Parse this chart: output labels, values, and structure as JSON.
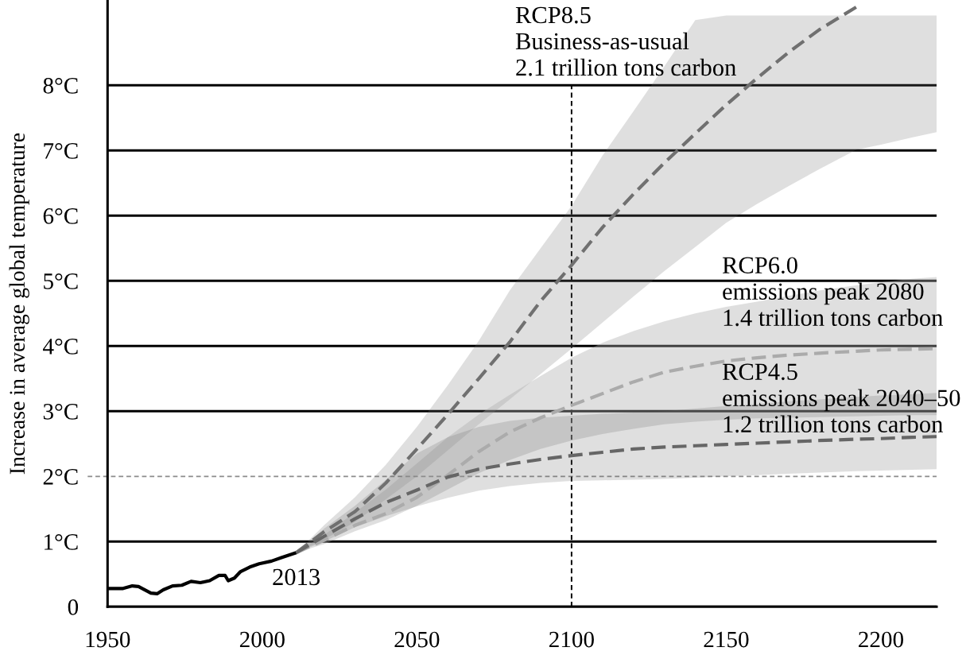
{
  "chart_data": {
    "type": "line",
    "ylabel": "Increase in average global temperature",
    "xlim": [
      1950,
      2218
    ],
    "ylim": [
      0,
      9.3
    ],
    "xticks": [
      1950,
      2000,
      2050,
      2100,
      2150,
      2200
    ],
    "yticks": [
      0,
      {
        "value": 1,
        "label": "1°C"
      },
      {
        "value": 2,
        "label": "2°C"
      },
      {
        "value": 3,
        "label": "3°C"
      },
      {
        "value": 4,
        "label": "4°C"
      },
      {
        "value": 5,
        "label": "5°C"
      },
      {
        "value": 6,
        "label": "6°C"
      },
      {
        "value": 7,
        "label": "7°C"
      },
      {
        "value": 8,
        "label": "8°C"
      }
    ],
    "grid": "y",
    "line_style": "dashed",
    "series": [
      {
        "color": "#000000",
        "line_style": "solid",
        "x": [
          1950,
          1955,
          1958,
          1960,
          1964,
          1966,
          1968,
          1971,
          1974,
          1977,
          1980,
          1983,
          1986,
          1988,
          1989,
          1991,
          1993,
          1996,
          1999,
          2003,
          2006,
          2011
        ],
        "values": [
          0.28,
          0.28,
          0.32,
          0.31,
          0.21,
          0.2,
          0.26,
          0.32,
          0.33,
          0.39,
          0.37,
          0.4,
          0.48,
          0.48,
          0.4,
          0.44,
          0.54,
          0.61,
          0.66,
          0.7,
          0.75,
          0.83
        ]
      },
      {
        "color": "#707070",
        "x": [
          2011,
          2020,
          2030,
          2040,
          2050,
          2060,
          2070,
          2080,
          2090,
          2100,
          2110,
          2120,
          2130,
          2140,
          2150,
          2160,
          2170,
          2180,
          2192,
          2200,
          2210,
          2218
        ],
        "values": [
          0.83,
          1.15,
          1.46,
          1.9,
          2.42,
          2.95,
          3.5,
          4.06,
          4.69,
          5.24,
          5.82,
          6.33,
          6.81,
          7.26,
          7.7,
          8.11,
          8.5,
          8.85,
          9.2,
          null,
          null,
          null
        ],
        "upper": [
          0.83,
          1.25,
          1.68,
          2.18,
          2.76,
          3.4,
          4.08,
          4.85,
          5.5,
          6.15,
          6.92,
          7.6,
          8.29,
          9.0,
          9.07,
          9.07,
          9.07,
          9.07,
          9.07,
          9.07,
          9.07,
          9.07
        ],
        "lower": [
          0.83,
          1.03,
          1.3,
          1.65,
          2.0,
          2.4,
          2.8,
          3.18,
          3.57,
          3.96,
          4.36,
          4.76,
          5.15,
          5.52,
          5.89,
          6.18,
          6.45,
          6.71,
          7.01,
          7.09,
          7.2,
          7.28
        ]
      },
      {
        "color": "#ababab",
        "x": [
          2011,
          2020,
          2030,
          2040,
          2050,
          2060,
          2070,
          2080,
          2090,
          2100,
          2110,
          2120,
          2130,
          2140,
          2150,
          2160,
          2170,
          2180,
          2192,
          2200,
          2210,
          2218
        ],
        "values": [
          0.83,
          1.02,
          1.25,
          1.43,
          1.68,
          2.02,
          2.38,
          2.68,
          2.9,
          3.09,
          3.27,
          3.45,
          3.6,
          3.69,
          3.77,
          3.82,
          3.86,
          3.89,
          3.92,
          3.94,
          3.95,
          3.96
        ],
        "upper": [
          0.83,
          1.1,
          1.45,
          1.8,
          2.2,
          2.6,
          2.95,
          3.25,
          3.54,
          3.82,
          4.05,
          4.23,
          4.38,
          4.5,
          4.6,
          4.68,
          4.77,
          4.85,
          4.93,
          4.98,
          5.03,
          5.06
        ],
        "lower": [
          0.83,
          0.96,
          1.16,
          1.33,
          1.55,
          1.8,
          2.05,
          2.25,
          2.42,
          2.55,
          2.65,
          2.73,
          2.8,
          2.84,
          2.87,
          2.89,
          2.9,
          2.91,
          2.92,
          2.93,
          2.94,
          2.94
        ]
      },
      {
        "color": "#666666",
        "x": [
          2011,
          2020,
          2030,
          2040,
          2050,
          2060,
          2070,
          2080,
          2090,
          2100,
          2110,
          2120,
          2130,
          2140,
          2150,
          2160,
          2170,
          2180,
          2192,
          2200,
          2210,
          2218
        ],
        "values": [
          0.83,
          1.08,
          1.35,
          1.6,
          1.79,
          1.99,
          2.11,
          2.19,
          2.26,
          2.32,
          2.37,
          2.42,
          2.45,
          2.47,
          2.49,
          2.51,
          2.53,
          2.55,
          2.57,
          2.58,
          2.6,
          2.61
        ],
        "upper": [
          0.83,
          1.2,
          1.55,
          1.95,
          2.35,
          2.6,
          2.76,
          2.85,
          2.9,
          2.93,
          2.96,
          2.98,
          3.0,
          3.04,
          3.08,
          3.11,
          3.15,
          3.18,
          3.22,
          3.24,
          3.26,
          3.28
        ],
        "lower": [
          0.83,
          1.0,
          1.22,
          1.39,
          1.54,
          1.67,
          1.78,
          1.85,
          1.9,
          1.93,
          1.94,
          1.95,
          1.96,
          1.98,
          2.0,
          2.02,
          2.04,
          2.06,
          2.08,
          2.09,
          2.1,
          2.11
        ]
      }
    ],
    "ref_lines": [
      {
        "axis": "y",
        "value": 2,
        "line_style": "dashed",
        "color": "#8c8c8c"
      },
      {
        "axis": "x",
        "value": 2100,
        "line_style": "dashed",
        "color": "#000000"
      }
    ],
    "annotations": [
      "RCP8.5\nBusiness-as-usual\n2.1 trillion tons carbon",
      "RCP6.0\nemissions peak 2080\n1.4 trillion tons carbon",
      "RCP4.5\nemissions peak 2040–50\n1.2 trillion tons carbon",
      {
        "text": "2013",
        "x": 2011,
        "y": 0.83
      }
    ]
  }
}
